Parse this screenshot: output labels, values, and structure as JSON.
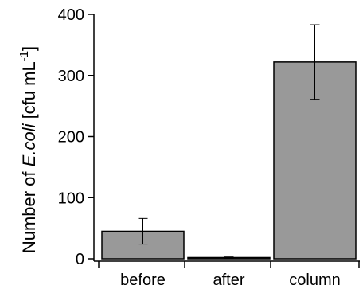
{
  "chart_data": {
    "type": "bar",
    "categories": [
      "before",
      "after",
      "column"
    ],
    "values": [
      45,
      2,
      322
    ],
    "errors": [
      21,
      1,
      61
    ],
    "ylabel": {
      "prefix": "Number of ",
      "italic": "E.coli",
      "unit": " [cfu mL",
      "superscript": "-1",
      "close": "]"
    },
    "ylim": [
      0,
      400
    ],
    "yticks": [
      0,
      100,
      200,
      300,
      400
    ],
    "bar_color": "#999999",
    "grid": false
  }
}
